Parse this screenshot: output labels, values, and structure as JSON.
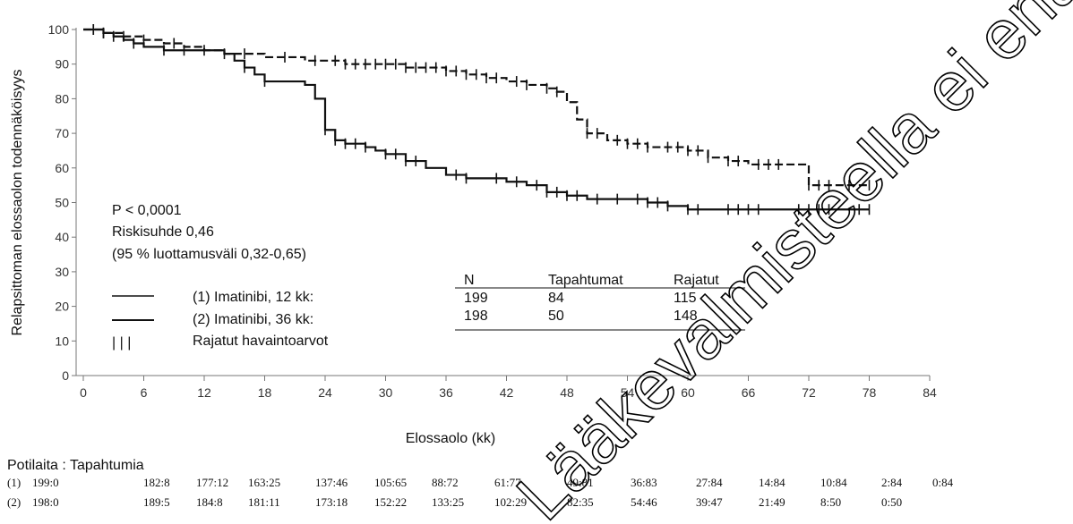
{
  "chart_data": {
    "type": "line",
    "xlabel": "Elossaolo (kk)",
    "ylabel": "Relapsittoman elossaolon todennäköisyys",
    "xlim": [
      0,
      84
    ],
    "ylim": [
      0,
      100
    ],
    "xticks": [
      0,
      6,
      12,
      18,
      24,
      30,
      36,
      42,
      48,
      54,
      60,
      66,
      72,
      78,
      84
    ],
    "yticks": [
      0,
      10,
      20,
      30,
      40,
      50,
      60,
      70,
      80,
      90,
      100
    ],
    "series": [
      {
        "name": "(1) Imatinibi, 12 kk:",
        "style": "solid",
        "x": [
          0,
          1,
          2,
          3,
          4,
          5,
          6,
          7,
          8,
          10,
          12,
          14,
          15,
          16,
          17,
          18,
          19,
          20,
          21,
          22,
          23,
          24,
          25,
          26,
          27,
          28,
          29,
          30,
          32,
          34,
          36,
          38,
          40,
          42,
          44,
          46,
          48,
          50,
          52,
          54,
          56,
          58,
          60,
          66,
          72,
          78
        ],
        "y": [
          100,
          100,
          99,
          98,
          97,
          96,
          95,
          95,
          94,
          94,
          94,
          93,
          91,
          89,
          87,
          85,
          85,
          85,
          85,
          84,
          80,
          71,
          68,
          67,
          67,
          66,
          65,
          64,
          62,
          60,
          58,
          57,
          57,
          56,
          55,
          53,
          52,
          51,
          51,
          51,
          50,
          49,
          48,
          48,
          48,
          48
        ],
        "censored_x": [
          1,
          2,
          3,
          5,
          8,
          10,
          14,
          16,
          18,
          24,
          25,
          26,
          27,
          28,
          30,
          31,
          32,
          33,
          37,
          38,
          41,
          43,
          45,
          46,
          47,
          48,
          49,
          51,
          53,
          55,
          56,
          57,
          58,
          60,
          61,
          64,
          65,
          66,
          67,
          71,
          72,
          73,
          74,
          77,
          78
        ]
      },
      {
        "name": "(2) Imatinibi, 36 kk:",
        "style": "dashed",
        "x": [
          0,
          2,
          4,
          6,
          8,
          10,
          12,
          14,
          16,
          18,
          20,
          22,
          24,
          26,
          28,
          30,
          32,
          34,
          36,
          38,
          40,
          42,
          44,
          46,
          47,
          48,
          49,
          50,
          52,
          54,
          56,
          58,
          60,
          62,
          64,
          66,
          68,
          70,
          71,
          72,
          74,
          76,
          78
        ],
        "y": [
          100,
          99,
          98,
          97,
          96,
          95,
          94,
          93,
          93,
          92,
          92,
          91,
          91,
          90,
          90,
          90,
          89,
          89,
          88,
          87,
          86,
          85,
          84,
          83,
          82,
          79,
          74,
          70,
          68,
          67,
          66,
          66,
          65,
          63,
          62,
          61,
          61,
          61,
          61,
          55,
          55,
          55,
          55
        ],
        "censored_x": [
          1,
          2,
          4,
          6,
          9,
          12,
          16,
          20,
          23,
          25,
          26,
          27,
          28,
          29,
          30,
          31,
          32,
          33,
          34,
          35,
          36,
          37,
          38,
          39,
          40,
          41,
          43,
          44,
          46,
          47,
          50,
          51,
          53,
          54,
          55,
          56,
          58,
          59,
          60,
          61,
          62,
          64,
          65,
          67,
          68,
          69,
          72,
          73,
          74,
          76,
          78
        ]
      }
    ]
  },
  "stats": {
    "p_value": "P < 0,0001",
    "hazard_ratio": "Riskisuhde 0,46",
    "ci": "(95 % luottamusväli 0,32-0,65)"
  },
  "legend": {
    "line1": "(1) Imatinibi, 12 kk:",
    "line2": "(2) Imatinibi, 36 kk:",
    "censor_symbol": "| | |",
    "censor_label": "Rajatut havaintoarvot"
  },
  "summary_table": {
    "headers": [
      "N",
      "Tapahtumat",
      "Rajatut"
    ],
    "rows": [
      [
        "199",
        "84",
        "115"
      ],
      [
        "198",
        "50",
        "148"
      ]
    ]
  },
  "risk_table": {
    "title": "Potilaita : Tapahtumia",
    "rows": [
      {
        "label": "(1)",
        "values": [
          "199:0",
          "182:8",
          "177:12",
          "163:25",
          "137:46",
          "105:65",
          "88:72",
          "61:77",
          "49:81",
          "36:83",
          "27:84",
          "14:84",
          "10:84",
          "2:84",
          "0:84"
        ]
      },
      {
        "label": "(2)",
        "values": [
          "198:0",
          "189:5",
          "184:8",
          "181:11",
          "173:18",
          "152:22",
          "133:25",
          "102:29",
          "82:35",
          "54:46",
          "39:47",
          "21:49",
          "8:50",
          "0:50"
        ]
      }
    ]
  },
  "watermark": "Lääkevalmisteella ei enää myyntilupaa"
}
